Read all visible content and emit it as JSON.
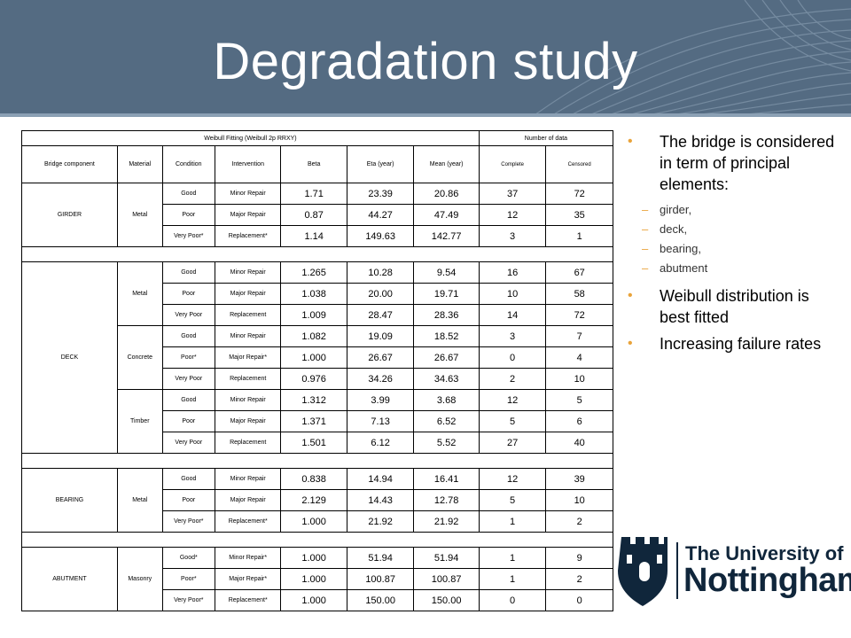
{
  "slide": {
    "title": "Degradation study",
    "colors": {
      "header": "#546b82",
      "bullet_accent": "#e9a33a",
      "logo": "#10263b"
    }
  },
  "table": {
    "group_header": "Weibull Fitting (Weibull 2p RRXY)",
    "number_header": "Number of data",
    "columns": [
      "Bridge component",
      "Material",
      "Condition",
      "Intervention",
      "Beta",
      "Eta (year)",
      "Mean (year)",
      "Complete",
      "Censored"
    ],
    "girder": {
      "component": "GIRDER",
      "material": "Metal",
      "rows": [
        [
          "Good",
          "Minor Repair",
          "1.71",
          "23.39",
          "20.86",
          "37",
          "72"
        ],
        [
          "Poor",
          "Major Repair",
          "0.87",
          "44.27",
          "47.49",
          "12",
          "35"
        ],
        [
          "Very Poor*",
          "Replacement*",
          "1.14",
          "149.63",
          "142.77",
          "3",
          "1"
        ]
      ]
    },
    "deck": {
      "component": "DECK",
      "metal": {
        "material": "Metal",
        "rows": [
          [
            "Good",
            "Minor Repair",
            "1.265",
            "10.28",
            "9.54",
            "16",
            "67"
          ],
          [
            "Poor",
            "Major Repair",
            "1.038",
            "20.00",
            "19.71",
            "10",
            "58"
          ],
          [
            "Very Poor",
            "Replacement",
            "1.009",
            "28.47",
            "28.36",
            "14",
            "72"
          ]
        ]
      },
      "concrete": {
        "material": "Concrete",
        "rows": [
          [
            "Good",
            "Minor Repair",
            "1.082",
            "19.09",
            "18.52",
            "3",
            "7"
          ],
          [
            "Poor*",
            "Major Repair*",
            "1.000",
            "26.67",
            "26.67",
            "0",
            "4"
          ],
          [
            "Very Poor",
            "Replacement",
            "0.976",
            "34.26",
            "34.63",
            "2",
            "10"
          ]
        ]
      },
      "timber": {
        "material": "Timber",
        "rows": [
          [
            "Good",
            "Minor Repair",
            "1.312",
            "3.99",
            "3.68",
            "12",
            "5"
          ],
          [
            "Poor",
            "Major Repair",
            "1.371",
            "7.13",
            "6.52",
            "5",
            "6"
          ],
          [
            "Very Poor",
            "Replacement",
            "1.501",
            "6.12",
            "5.52",
            "27",
            "40"
          ]
        ]
      }
    },
    "bearing": {
      "component": "BEARING",
      "material": "Metal",
      "rows": [
        [
          "Good",
          "Minor Repair",
          "0.838",
          "14.94",
          "16.41",
          "12",
          "39"
        ],
        [
          "Poor",
          "Major Repair",
          "2.129",
          "14.43",
          "12.78",
          "5",
          "10"
        ],
        [
          "Very Poor*",
          "Replacement*",
          "1.000",
          "21.92",
          "21.92",
          "1",
          "2"
        ]
      ]
    },
    "abutment": {
      "component": "ABUTMENT",
      "material": "Masonry",
      "rows": [
        [
          "Good*",
          "Minor Repair*",
          "1.000",
          "51.94",
          "51.94",
          "1",
          "9"
        ],
        [
          "Poor*",
          "Major Repair*",
          "1.000",
          "100.87",
          "100.87",
          "1",
          "2"
        ],
        [
          "Very Poor*",
          "Replacement*",
          "1.000",
          "150.00",
          "150.00",
          "0",
          "0"
        ]
      ]
    }
  },
  "bullets": {
    "b1": "The bridge is considered in term of principal elements:",
    "subs": [
      "girder,",
      "deck,",
      "bearing,",
      "abutment"
    ],
    "b2": "Weibull distribution is best fitted",
    "b3": "Increasing failure rates",
    "marker": "•",
    "sub_marker": "–"
  },
  "logo": {
    "line1": "The University of",
    "line2": "Nottingham"
  }
}
